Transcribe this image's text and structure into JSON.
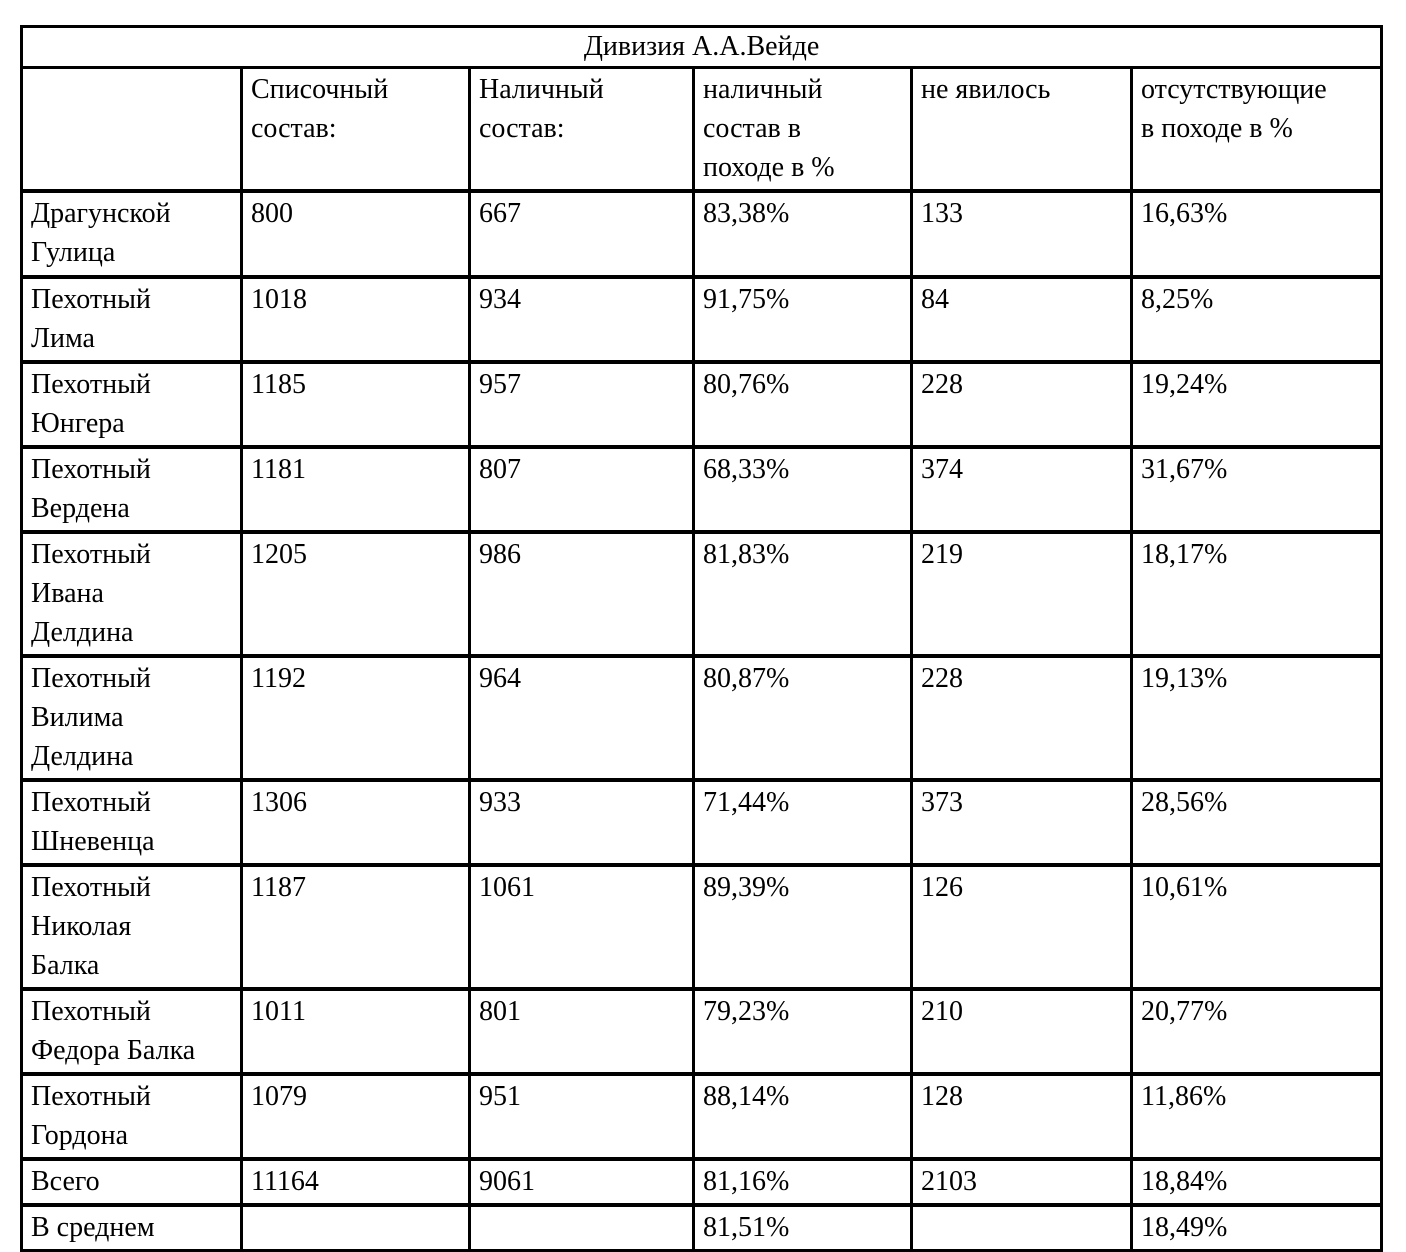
{
  "colors": {
    "background": "#ffffff",
    "text": "#000000",
    "border": "#000000"
  },
  "table": {
    "title": "Дивизия А.А.Вейде",
    "headers": {
      "regiment": "",
      "list_strength": "Списочный\nсостав:",
      "present_strength": "Наличный\nсостав:",
      "present_pct": "наличный\nсостав в\nпоходе в %",
      "no_show": "не явилось",
      "absent_pct": "отсутствующие\nв походе в %"
    },
    "rows": [
      {
        "regiment": "Драгунской\nГулица",
        "list_strength": "800",
        "present_strength": "667",
        "present_pct": "83,38%",
        "no_show": "133",
        "absent_pct": "16,63%"
      },
      {
        "regiment": "Пехотный\nЛима",
        "list_strength": "1018",
        "present_strength": "934",
        "present_pct": "91,75%",
        "no_show": "84",
        "absent_pct": "8,25%"
      },
      {
        "regiment": "Пехотный\nЮнгера",
        "list_strength": "1185",
        "present_strength": "957",
        "present_pct": "80,76%",
        "no_show": "228",
        "absent_pct": "19,24%"
      },
      {
        "regiment": "Пехотный\nВердена",
        "list_strength": "1181",
        "present_strength": "807",
        "present_pct": "68,33%",
        "no_show": "374",
        "absent_pct": "31,67%"
      },
      {
        "regiment": "Пехотный\nИвана\nДелдина",
        "list_strength": "1205",
        "present_strength": "986",
        "present_pct": "81,83%",
        "no_show": "219",
        "absent_pct": "18,17%"
      },
      {
        "regiment": "Пехотный\nВилима\nДелдина",
        "list_strength": "1192",
        "present_strength": "964",
        "present_pct": "80,87%",
        "no_show": "228",
        "absent_pct": "19,13%"
      },
      {
        "regiment": "Пехотный\nШневенца",
        "list_strength": "1306",
        "present_strength": "933",
        "present_pct": "71,44%",
        "no_show": "373",
        "absent_pct": "28,56%"
      },
      {
        "regiment": "Пехотный\nНиколая\nБалка",
        "list_strength": "1187",
        "present_strength": "1061",
        "present_pct": "89,39%",
        "no_show": "126",
        "absent_pct": "10,61%"
      },
      {
        "regiment": "Пехотный\nФедора Балка",
        "list_strength": "1011",
        "present_strength": "801",
        "present_pct": "79,23%",
        "no_show": "210",
        "absent_pct": "20,77%"
      },
      {
        "regiment": "Пехотный\nГордона",
        "list_strength": "1079",
        "present_strength": "951",
        "present_pct": "88,14%",
        "no_show": "128",
        "absent_pct": "11,86%"
      },
      {
        "regiment": "Всего",
        "list_strength": "11164",
        "present_strength": "9061",
        "present_pct": "81,16%",
        "no_show": "2103",
        "absent_pct": "18,84%"
      },
      {
        "regiment": "В среднем",
        "list_strength": "",
        "present_strength": "",
        "present_pct": "81,51%",
        "no_show": "",
        "absent_pct": "18,49%"
      }
    ]
  }
}
